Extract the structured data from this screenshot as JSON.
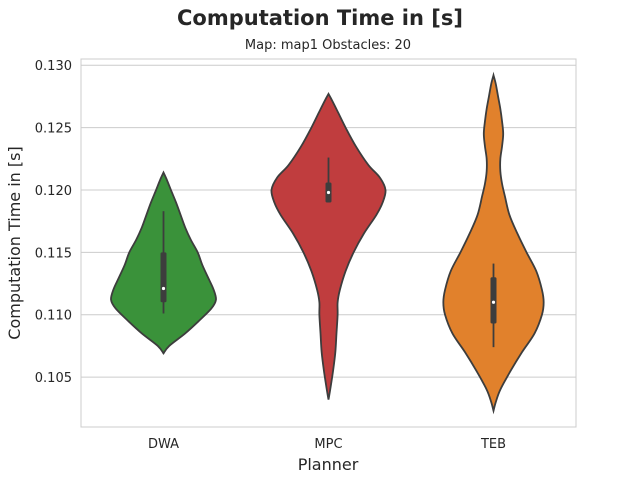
{
  "chart_data": {
    "type": "violin",
    "title": "Computation Time in [s]",
    "subtitle": "Map: map1 Obstacles: 20",
    "xlabel": "Planner",
    "ylabel": "Computation Time in [s]",
    "ylim": [
      0.101,
      0.1305
    ],
    "yticks": [
      "0.105",
      "0.110",
      "0.115",
      "0.120",
      "0.125",
      "0.130"
    ],
    "ytick_values": [
      0.105,
      0.11,
      0.115,
      0.12,
      0.125,
      0.13
    ],
    "grid": "horizontal",
    "categories": [
      "DWA",
      "MPC",
      "TEB"
    ],
    "series": [
      {
        "category": "DWA",
        "color": "#3a923a",
        "range": [
          0.1069,
          0.1214
        ],
        "whisker": [
          0.1101,
          0.1183
        ],
        "box": [
          0.111,
          0.115
        ],
        "median": 0.1121,
        "density": [
          [
            0.1069,
            0.0
          ],
          [
            0.1075,
            0.1
          ],
          [
            0.1085,
            0.38
          ],
          [
            0.1095,
            0.62
          ],
          [
            0.1105,
            0.84
          ],
          [
            0.1112,
            0.92
          ],
          [
            0.112,
            0.88
          ],
          [
            0.113,
            0.78
          ],
          [
            0.114,
            0.68
          ],
          [
            0.115,
            0.6
          ],
          [
            0.116,
            0.48
          ],
          [
            0.117,
            0.38
          ],
          [
            0.118,
            0.3
          ],
          [
            0.119,
            0.22
          ],
          [
            0.12,
            0.13
          ],
          [
            0.1208,
            0.06
          ],
          [
            0.1214,
            0.0
          ]
        ]
      },
      {
        "category": "MPC",
        "color": "#c03d3e",
        "range": [
          0.1032,
          0.1277
        ],
        "whisker": [
          0.119,
          0.1226
        ],
        "box": [
          0.119,
          0.1206
        ],
        "median": 0.1198,
        "density": [
          [
            0.1032,
            0.0
          ],
          [
            0.104,
            0.03
          ],
          [
            0.1055,
            0.08
          ],
          [
            0.107,
            0.12
          ],
          [
            0.1085,
            0.14
          ],
          [
            0.11,
            0.16
          ],
          [
            0.111,
            0.16
          ],
          [
            0.112,
            0.2
          ],
          [
            0.1135,
            0.3
          ],
          [
            0.115,
            0.44
          ],
          [
            0.1165,
            0.62
          ],
          [
            0.118,
            0.84
          ],
          [
            0.119,
            0.95
          ],
          [
            0.12,
            1.0
          ],
          [
            0.121,
            0.9
          ],
          [
            0.122,
            0.7
          ],
          [
            0.1235,
            0.48
          ],
          [
            0.125,
            0.3
          ],
          [
            0.1262,
            0.17
          ],
          [
            0.1272,
            0.06
          ],
          [
            0.1277,
            0.0
          ]
        ]
      },
      {
        "category": "TEB",
        "color": "#e1812c",
        "range": [
          0.1023,
          0.1292
        ],
        "whisker": [
          0.1074,
          0.1141
        ],
        "box": [
          0.1093,
          0.113
        ],
        "median": 0.111,
        "density": [
          [
            0.1023,
            0.0
          ],
          [
            0.103,
            0.04
          ],
          [
            0.104,
            0.12
          ],
          [
            0.1055,
            0.3
          ],
          [
            0.107,
            0.5
          ],
          [
            0.1085,
            0.72
          ],
          [
            0.11,
            0.85
          ],
          [
            0.111,
            0.88
          ],
          [
            0.112,
            0.85
          ],
          [
            0.1135,
            0.75
          ],
          [
            0.115,
            0.58
          ],
          [
            0.1165,
            0.42
          ],
          [
            0.118,
            0.28
          ],
          [
            0.1195,
            0.2
          ],
          [
            0.1205,
            0.15
          ],
          [
            0.1215,
            0.12
          ],
          [
            0.1225,
            0.12
          ],
          [
            0.1235,
            0.15
          ],
          [
            0.1245,
            0.17
          ],
          [
            0.1255,
            0.15
          ],
          [
            0.1265,
            0.12
          ],
          [
            0.1275,
            0.08
          ],
          [
            0.1285,
            0.04
          ],
          [
            0.1292,
            0.0
          ]
        ]
      }
    ]
  }
}
